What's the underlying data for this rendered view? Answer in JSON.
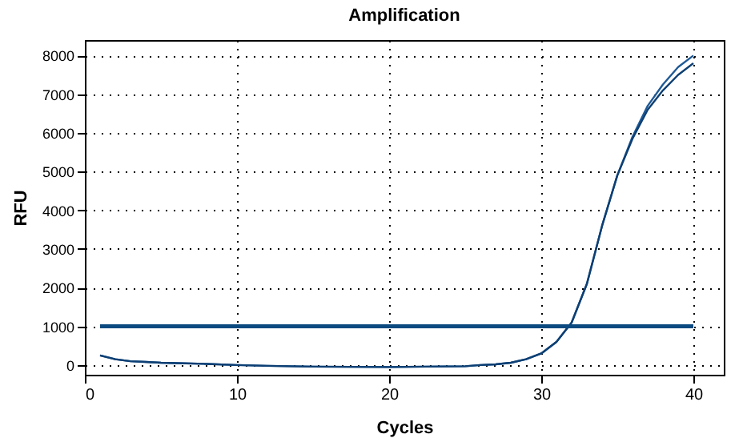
{
  "chart_data": {
    "type": "line",
    "title": "Amplification",
    "xlabel": "Cycles",
    "ylabel": "RFU",
    "x": [
      1,
      2,
      3,
      4,
      5,
      6,
      8,
      10,
      12,
      15,
      20,
      25,
      26,
      27,
      28,
      29,
      30,
      31,
      32,
      33,
      34,
      35,
      36,
      37,
      38,
      39,
      40
    ],
    "series": [
      {
        "color": "#1f5a96",
        "values": [
          250,
          150,
          100,
          80,
          60,
          50,
          30,
          0,
          -20,
          -40,
          -50,
          -30,
          0,
          20,
          60,
          150,
          300,
          600,
          1100,
          2100,
          3600,
          4900,
          5900,
          6700,
          7250,
          7700,
          8000
        ]
      },
      {
        "color": "#0d3f73",
        "values": [
          250,
          150,
          100,
          80,
          60,
          50,
          30,
          0,
          -20,
          -40,
          -50,
          -30,
          0,
          20,
          60,
          150,
          300,
          600,
          1100,
          2100,
          3600,
          4900,
          5850,
          6600,
          7100,
          7500,
          7800
        ]
      }
    ],
    "xlim": [
      0,
      42
    ],
    "ylim": [
      -250,
      8400
    ],
    "xticks": [
      0,
      10,
      20,
      30,
      40
    ],
    "yticks": [
      0,
      1000,
      2000,
      3000,
      4000,
      5000,
      6000,
      7000,
      8000
    ],
    "ref_lines": [
      {
        "axis": "y",
        "value": 1000,
        "color": "#0b4a80"
      }
    ],
    "grid": true,
    "marker": "none",
    "line_style": "solid"
  }
}
